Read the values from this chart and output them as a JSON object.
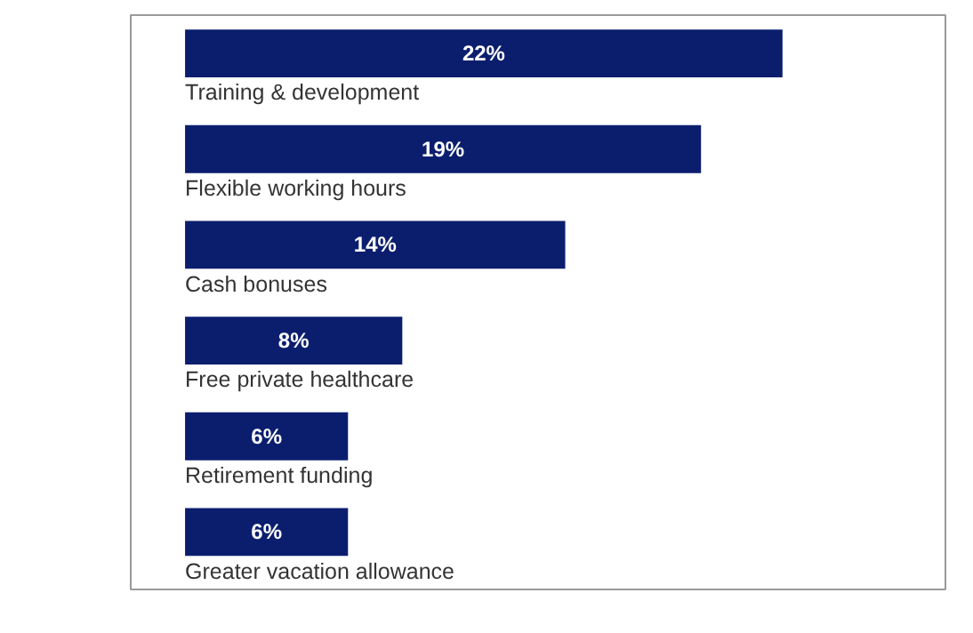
{
  "chart_data": {
    "type": "bar",
    "orientation": "horizontal",
    "categories": [
      "Training & development",
      "Flexible working hours",
      "Cash bonuses",
      "Free private healthcare",
      "Retirement funding",
      "Greater vacation allowance"
    ],
    "values": [
      22,
      19,
      14,
      8,
      6,
      6
    ],
    "value_labels": [
      "22%",
      "19%",
      "14%",
      "8%",
      "6%",
      "6%"
    ],
    "color": "#0b1e6e",
    "xlim": [
      0,
      28
    ],
    "grid": false
  }
}
